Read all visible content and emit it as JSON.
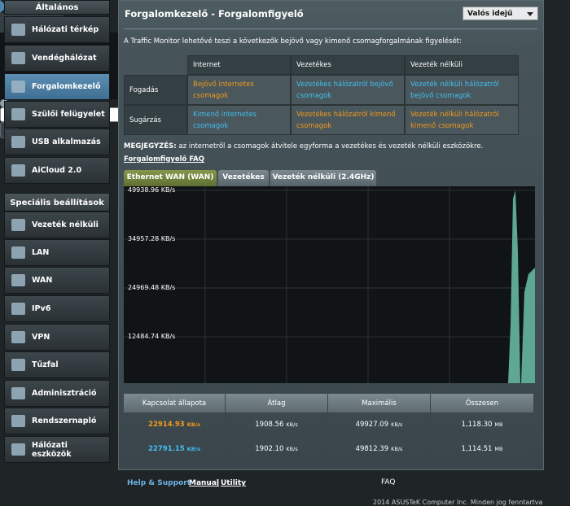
{
  "sidebar": {
    "general_heading": "Általános",
    "general_items": [
      "Hálózati térkép",
      "Vendéghálózat",
      "Forgalomkezelő",
      "Szülői felügyelet",
      "USB alkalmazás",
      "AiCloud 2.0"
    ],
    "advanced_heading": "Speciális beállítások",
    "advanced_items": [
      "Vezeték nélküli",
      "LAN",
      "WAN",
      "IPv6",
      "VPN",
      "Tűzfal",
      "Adminisztráció",
      "Rendszernapló",
      "Hálózati eszközök"
    ]
  },
  "header": {
    "title": "Forgalomkezelő - Forgalomfigyelő",
    "mode_select": "Valós idejű"
  },
  "description": "A Traffic Monitor lehetővé teszi a következők bejövő vagy kimenő csomagforgalmának figyelését:",
  "traffic_table": {
    "columns": [
      "Internet",
      "Vezetékes",
      "Vezeték nélküli"
    ],
    "rows": [
      {
        "label": "Fogadás",
        "cells": [
          "Bejövő internetes csomagok",
          "Vezetékes hálózatról bejövő csomagok",
          "Vezeték nélküli hálózatról bejövő csomagok"
        ]
      },
      {
        "label": "Sugárzás",
        "cells": [
          "Kimenő internetes csomagok",
          "Vezetékes hálózatról kimenő csomagok",
          "Vezeték nélküli hálózatról kimenő csomagok"
        ]
      }
    ]
  },
  "note": {
    "label": "MEGJEGYZÉS:",
    "text": " az internetről a csomagok átvitele egyforma a vezetékes és vezeték nélküli eszközökre."
  },
  "faq_link": "Forgalomfigyelő FAQ",
  "tabs": [
    "Ethernet WAN (WAN)",
    "Vezetékes",
    "Vezeték nélküli (2.4GHz)"
  ],
  "graph": {
    "y_labels": [
      "49938.96 KB/s",
      "34957.28 KB/s",
      "24969.48 KB/s",
      "12484.74 KB/s"
    ]
  },
  "stats": {
    "columns": [
      "Kapcsolat állapota",
      "Átlag",
      "Maximális",
      "Összesen"
    ],
    "rows": [
      [
        {
          "value": "22914.93",
          "unit": "KB/s"
        },
        {
          "value": "1908.56",
          "unit": "KB/s"
        },
        {
          "value": "49927.09",
          "unit": "KB/s"
        },
        {
          "value": "1,118.30",
          "unit": "MB"
        }
      ],
      [
        {
          "value": "22791.15",
          "unit": "KB/s"
        },
        {
          "value": "1902.10",
          "unit": "KB/s"
        },
        {
          "value": "49812.39",
          "unit": "KB/s"
        },
        {
          "value": "1,114.51",
          "unit": "MB"
        }
      ]
    ]
  },
  "footer": {
    "help": "Help & Support",
    "manual": "Manual",
    "separator": "|",
    "utility": "Utility",
    "faq": "FAQ",
    "copyright": "2014 ASUSTeK Computer Inc. Minden jog fenntartva"
  }
}
